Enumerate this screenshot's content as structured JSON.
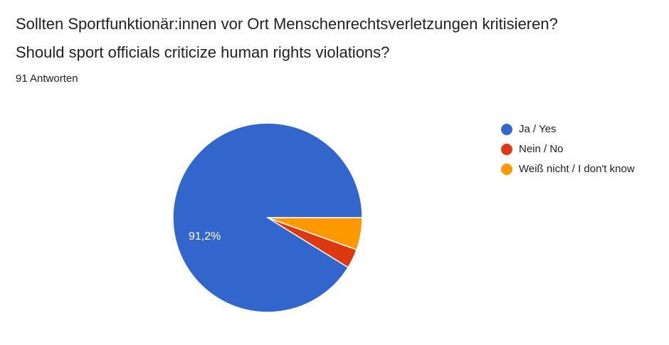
{
  "header": {
    "title_de": "Sollten Sportfunktionär:innen vor Ort Menschenrechtsverletzungen kritisieren?",
    "title_en": "Should sport officials criticize human rights violations?",
    "responses": "91 Antworten"
  },
  "chart_data": {
    "type": "pie",
    "categories": [
      "Ja / Yes",
      "Nein / No",
      "Weiß nicht / I don't know"
    ],
    "values": [
      91.2,
      3.3,
      5.5
    ],
    "value_unit": "percent",
    "total_responses": 91,
    "data_labels": [
      "91,2%",
      "",
      ""
    ],
    "colors": [
      "#3366cc",
      "#dc3912",
      "#ff9900"
    ],
    "start_angle": "3 o'clock, counterclockwise",
    "legend_position": "right"
  }
}
